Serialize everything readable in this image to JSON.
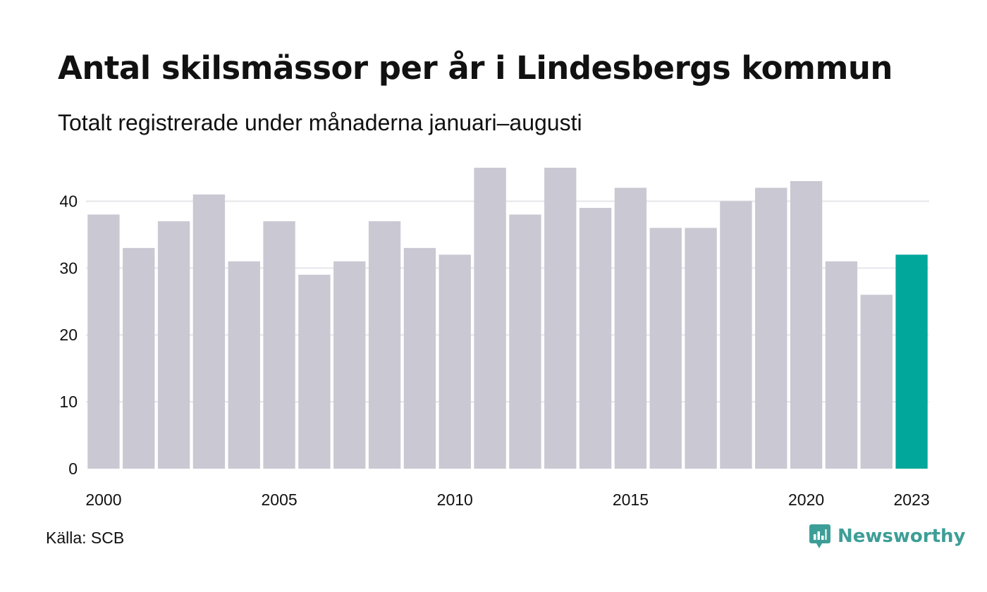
{
  "title": "Antal skilsmässor per år i Lindesbergs kommun",
  "subtitle": "Totalt registrerade under månaderna januari–augusti",
  "source": "Källa: SCB",
  "brand": {
    "name": "Newsworthy",
    "icon": "newsworthy-logo-icon",
    "color": "#3d9e97"
  },
  "chart_data": {
    "type": "bar",
    "categories": [
      "2000",
      "2001",
      "2002",
      "2003",
      "2004",
      "2005",
      "2006",
      "2007",
      "2008",
      "2009",
      "2010",
      "2011",
      "2012",
      "2013",
      "2014",
      "2015",
      "2016",
      "2017",
      "2018",
      "2019",
      "2020",
      "2021",
      "2022",
      "2023"
    ],
    "values": [
      38,
      33,
      37,
      41,
      31,
      37,
      29,
      31,
      37,
      33,
      32,
      45,
      38,
      45,
      39,
      42,
      36,
      36,
      40,
      42,
      43,
      31,
      26,
      32
    ],
    "x_tick_labels": [
      "2000",
      "2005",
      "2010",
      "2015",
      "2020",
      "2023"
    ],
    "y_ticks": [
      0,
      10,
      20,
      30,
      40
    ],
    "ylim": [
      0,
      45
    ],
    "grid": true,
    "bar_color": "#c9c8d3",
    "highlight_color": "#00a79a",
    "highlight_category": "2023",
    "xlabel": "",
    "ylabel": ""
  }
}
